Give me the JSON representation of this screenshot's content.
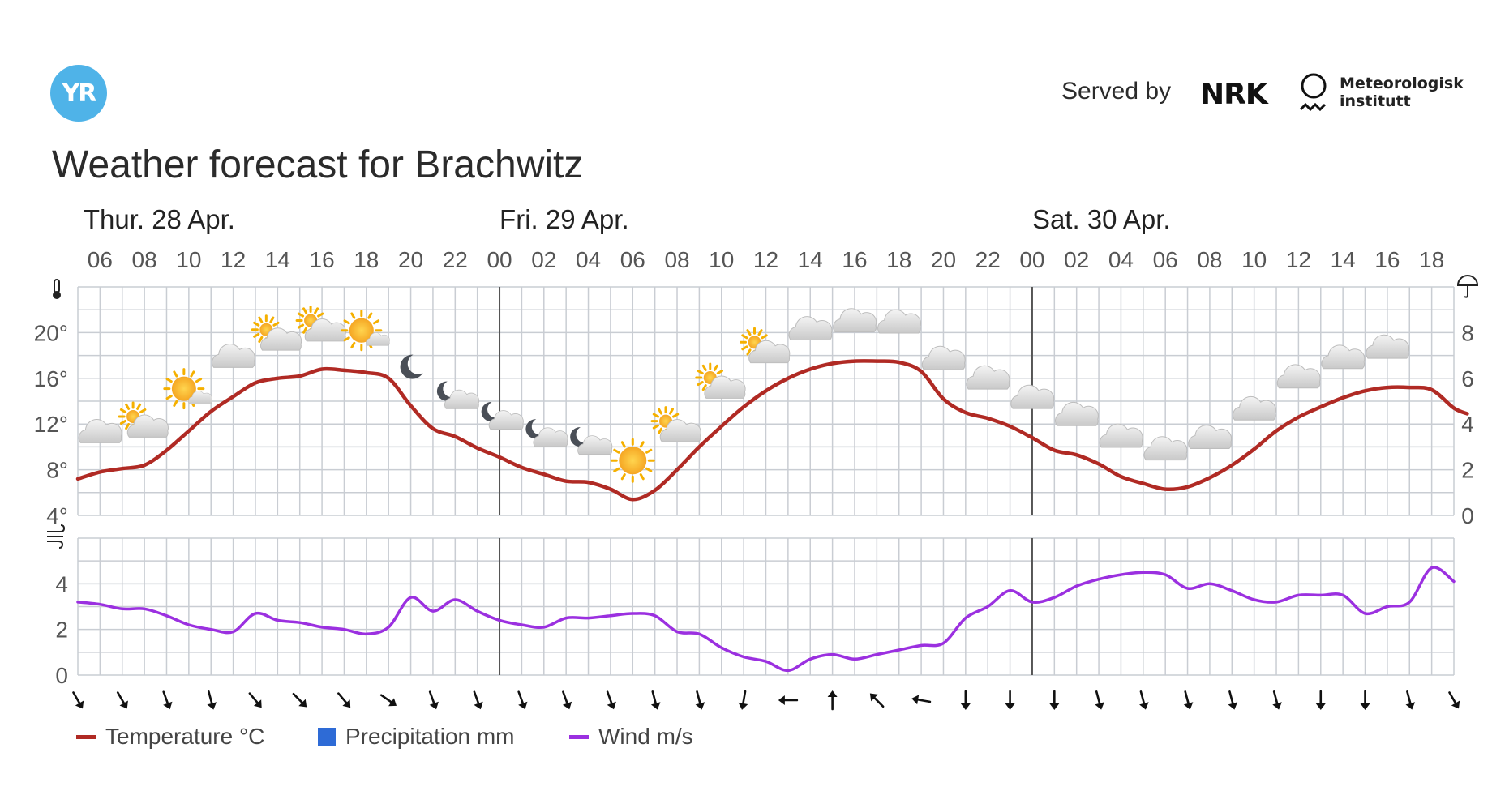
{
  "header": {
    "logo_text": "YR",
    "title": "Weather forecast for Brachwitz",
    "served_by": "Served by",
    "nrk_logo": "NRK",
    "met_line1": "Meteorologisk",
    "met_line2": "institutt"
  },
  "colors": {
    "temperature": "#b02a24",
    "precipitation": "#2e6bd6",
    "wind": "#9b30e0",
    "grid": "#c9cdd3",
    "day_divider": "#555555"
  },
  "legend": [
    {
      "label": "Temperature °C",
      "color": "#b02a24",
      "kind": "line"
    },
    {
      "label": "Precipitation mm",
      "color": "#2e6bd6",
      "kind": "box"
    },
    {
      "label": "Wind m/s",
      "color": "#9b30e0",
      "kind": "line"
    }
  ],
  "chart_data": {
    "type": "line",
    "days": [
      {
        "label": "Thur. 28 Apr.",
        "start_hour": 5.25
      },
      {
        "label": "Fri. 29 Apr.",
        "start_hour": 24
      },
      {
        "label": "Sat. 30 Apr.",
        "start_hour": 48
      }
    ],
    "x_hour_range": [
      5,
      67
    ],
    "hour_ticks": [
      {
        "h": 6,
        "label": "06"
      },
      {
        "h": 8,
        "label": "08"
      },
      {
        "h": 10,
        "label": "10"
      },
      {
        "h": 12,
        "label": "12"
      },
      {
        "h": 14,
        "label": "14"
      },
      {
        "h": 16,
        "label": "16"
      },
      {
        "h": 18,
        "label": "18"
      },
      {
        "h": 20,
        "label": "20"
      },
      {
        "h": 22,
        "label": "22"
      },
      {
        "h": 24,
        "label": "00"
      },
      {
        "h": 26,
        "label": "02"
      },
      {
        "h": 28,
        "label": "04"
      },
      {
        "h": 30,
        "label": "06"
      },
      {
        "h": 32,
        "label": "08"
      },
      {
        "h": 34,
        "label": "10"
      },
      {
        "h": 36,
        "label": "12"
      },
      {
        "h": 38,
        "label": "14"
      },
      {
        "h": 40,
        "label": "16"
      },
      {
        "h": 42,
        "label": "18"
      },
      {
        "h": 44,
        "label": "20"
      },
      {
        "h": 46,
        "label": "22"
      },
      {
        "h": 48,
        "label": "00"
      },
      {
        "h": 50,
        "label": "02"
      },
      {
        "h": 52,
        "label": "04"
      },
      {
        "h": 54,
        "label": "06"
      },
      {
        "h": 56,
        "label": "08"
      },
      {
        "h": 58,
        "label": "10"
      },
      {
        "h": 60,
        "label": "12"
      },
      {
        "h": 62,
        "label": "14"
      },
      {
        "h": 64,
        "label": "16"
      },
      {
        "h": 66,
        "label": "18"
      }
    ],
    "temperature": {
      "name": "Temperature °C",
      "ylim": [
        4,
        24
      ],
      "tick_labels": [
        {
          "v": 20,
          "label": "20°"
        },
        {
          "v": 16,
          "label": "16°"
        },
        {
          "v": 12,
          "label": "12°"
        },
        {
          "v": 8,
          "label": "8°"
        },
        {
          "v": 4,
          "label": "4°"
        }
      ],
      "values": [
        [
          5,
          7.2
        ],
        [
          6,
          7.8
        ],
        [
          7,
          8.1
        ],
        [
          8,
          8.4
        ],
        [
          9,
          9.7
        ],
        [
          10,
          11.4
        ],
        [
          11,
          13.1
        ],
        [
          12,
          14.4
        ],
        [
          13,
          15.6
        ],
        [
          14,
          16.0
        ],
        [
          15,
          16.2
        ],
        [
          16,
          16.8
        ],
        [
          17,
          16.7
        ],
        [
          18,
          16.5
        ],
        [
          19,
          16.0
        ],
        [
          20,
          13.6
        ],
        [
          21,
          11.6
        ],
        [
          22,
          10.9
        ],
        [
          23,
          9.9
        ],
        [
          24,
          9.1
        ],
        [
          25,
          8.2
        ],
        [
          26,
          7.6
        ],
        [
          27,
          7.0
        ],
        [
          28,
          6.9
        ],
        [
          29,
          6.3
        ],
        [
          30,
          5.4
        ],
        [
          31,
          6.2
        ],
        [
          32,
          8.0
        ],
        [
          33,
          10.0
        ],
        [
          34,
          11.8
        ],
        [
          35,
          13.5
        ],
        [
          36,
          14.9
        ],
        [
          37,
          16.0
        ],
        [
          38,
          16.8
        ],
        [
          39,
          17.3
        ],
        [
          40,
          17.5
        ],
        [
          41,
          17.5
        ],
        [
          42,
          17.4
        ],
        [
          43,
          16.6
        ],
        [
          44,
          14.2
        ],
        [
          45,
          13.0
        ],
        [
          46,
          12.5
        ],
        [
          47,
          11.8
        ],
        [
          48,
          10.8
        ],
        [
          49,
          9.7
        ],
        [
          50,
          9.3
        ],
        [
          51,
          8.5
        ],
        [
          52,
          7.4
        ],
        [
          53,
          6.8
        ],
        [
          54,
          6.3
        ],
        [
          55,
          6.5
        ],
        [
          56,
          7.3
        ],
        [
          57,
          8.4
        ],
        [
          58,
          9.8
        ],
        [
          59,
          11.4
        ],
        [
          60,
          12.6
        ],
        [
          61,
          13.5
        ],
        [
          62,
          14.3
        ],
        [
          63,
          14.9
        ],
        [
          64,
          15.2
        ],
        [
          65,
          15.2
        ],
        [
          66,
          15.0
        ],
        [
          67,
          13.4
        ],
        [
          67.6,
          12.9
        ]
      ]
    },
    "precipitation": {
      "name": "Precipitation mm",
      "ylim": [
        0,
        10
      ],
      "tick_labels": [
        {
          "v": 8,
          "label": "8"
        },
        {
          "v": 6,
          "label": "6"
        },
        {
          "v": 4,
          "label": "4"
        },
        {
          "v": 2,
          "label": "2"
        },
        {
          "v": 0,
          "label": "0"
        }
      ],
      "values": []
    },
    "wind": {
      "name": "Wind m/s",
      "ylim": [
        0,
        6
      ],
      "tick_labels": [
        {
          "v": 4,
          "label": "4"
        },
        {
          "v": 2,
          "label": "2"
        },
        {
          "v": 0,
          "label": "0"
        }
      ],
      "values": [
        [
          5,
          3.2
        ],
        [
          6,
          3.1
        ],
        [
          7,
          2.9
        ],
        [
          8,
          2.9
        ],
        [
          9,
          2.6
        ],
        [
          10,
          2.2
        ],
        [
          11,
          2.0
        ],
        [
          12,
          1.9
        ],
        [
          13,
          2.7
        ],
        [
          14,
          2.4
        ],
        [
          15,
          2.3
        ],
        [
          16,
          2.1
        ],
        [
          17,
          2.0
        ],
        [
          18,
          1.8
        ],
        [
          19,
          2.1
        ],
        [
          20,
          3.4
        ],
        [
          21,
          2.8
        ],
        [
          22,
          3.3
        ],
        [
          23,
          2.8
        ],
        [
          24,
          2.4
        ],
        [
          25,
          2.2
        ],
        [
          26,
          2.1
        ],
        [
          27,
          2.5
        ],
        [
          28,
          2.5
        ],
        [
          29,
          2.6
        ],
        [
          30,
          2.7
        ],
        [
          31,
          2.6
        ],
        [
          32,
          1.9
        ],
        [
          33,
          1.8
        ],
        [
          34,
          1.2
        ],
        [
          35,
          0.8
        ],
        [
          36,
          0.6
        ],
        [
          37,
          0.2
        ],
        [
          38,
          0.7
        ],
        [
          39,
          0.9
        ],
        [
          40,
          0.7
        ],
        [
          41,
          0.9
        ],
        [
          42,
          1.1
        ],
        [
          43,
          1.3
        ],
        [
          44,
          1.4
        ],
        [
          45,
          2.5
        ],
        [
          46,
          3.0
        ],
        [
          47,
          3.7
        ],
        [
          48,
          3.2
        ],
        [
          49,
          3.4
        ],
        [
          50,
          3.9
        ],
        [
          51,
          4.2
        ],
        [
          52,
          4.4
        ],
        [
          53,
          4.5
        ],
        [
          54,
          4.4
        ],
        [
          55,
          3.8
        ],
        [
          56,
          4.0
        ],
        [
          57,
          3.7
        ],
        [
          58,
          3.3
        ],
        [
          59,
          3.2
        ],
        [
          60,
          3.5
        ],
        [
          61,
          3.5
        ],
        [
          62,
          3.5
        ],
        [
          63,
          2.7
        ],
        [
          64,
          3.0
        ],
        [
          65,
          3.2
        ],
        [
          66,
          4.7
        ],
        [
          67,
          4.1
        ]
      ]
    },
    "wind_direction_arrows": [
      {
        "h": 5,
        "angle": 150
      },
      {
        "h": 7,
        "angle": 150
      },
      {
        "h": 9,
        "angle": 160
      },
      {
        "h": 11,
        "angle": 165
      },
      {
        "h": 13,
        "angle": 140
      },
      {
        "h": 15,
        "angle": 135
      },
      {
        "h": 17,
        "angle": 140
      },
      {
        "h": 19,
        "angle": 125
      },
      {
        "h": 21,
        "angle": 160
      },
      {
        "h": 23,
        "angle": 160
      },
      {
        "h": 25,
        "angle": 160
      },
      {
        "h": 27,
        "angle": 160
      },
      {
        "h": 29,
        "angle": 160
      },
      {
        "h": 31,
        "angle": 165
      },
      {
        "h": 33,
        "angle": 165
      },
      {
        "h": 35,
        "angle": 190
      },
      {
        "h": 37,
        "angle": 270
      },
      {
        "h": 39,
        "angle": 0
      },
      {
        "h": 41,
        "angle": 315
      },
      {
        "h": 43,
        "angle": 280
      },
      {
        "h": 45,
        "angle": 180
      },
      {
        "h": 47,
        "angle": 180
      },
      {
        "h": 49,
        "angle": 180
      },
      {
        "h": 51,
        "angle": 165
      },
      {
        "h": 53,
        "angle": 165
      },
      {
        "h": 55,
        "angle": 165
      },
      {
        "h": 57,
        "angle": 165
      },
      {
        "h": 59,
        "angle": 165
      },
      {
        "h": 61,
        "angle": 180
      },
      {
        "h": 63,
        "angle": 180
      },
      {
        "h": 65,
        "angle": 165
      },
      {
        "h": 67,
        "angle": 150
      }
    ],
    "weather_symbols": [
      {
        "h": 6,
        "symbol": "cloudy"
      },
      {
        "h": 8,
        "symbol": "partly-cloudy-day"
      },
      {
        "h": 10,
        "symbol": "fair-day"
      },
      {
        "h": 12,
        "symbol": "cloudy"
      },
      {
        "h": 14,
        "symbol": "partly-cloudy-day"
      },
      {
        "h": 16,
        "symbol": "partly-cloudy-day"
      },
      {
        "h": 18,
        "symbol": "fair-day"
      },
      {
        "h": 20,
        "symbol": "clear-night"
      },
      {
        "h": 22,
        "symbol": "partly-cloudy-night"
      },
      {
        "h": 24,
        "symbol": "partly-cloudy-night"
      },
      {
        "h": 26,
        "symbol": "partly-cloudy-night"
      },
      {
        "h": 28,
        "symbol": "partly-cloudy-night"
      },
      {
        "h": 30,
        "symbol": "clear-day"
      },
      {
        "h": 32,
        "symbol": "partly-cloudy-day"
      },
      {
        "h": 34,
        "symbol": "partly-cloudy-day"
      },
      {
        "h": 36,
        "symbol": "partly-cloudy-day"
      },
      {
        "h": 38,
        "symbol": "cloudy"
      },
      {
        "h": 40,
        "symbol": "cloudy"
      },
      {
        "h": 42,
        "symbol": "cloudy"
      },
      {
        "h": 44,
        "symbol": "cloudy"
      },
      {
        "h": 46,
        "symbol": "cloudy"
      },
      {
        "h": 48,
        "symbol": "cloudy"
      },
      {
        "h": 50,
        "symbol": "cloudy"
      },
      {
        "h": 52,
        "symbol": "cloudy"
      },
      {
        "h": 54,
        "symbol": "cloudy"
      },
      {
        "h": 56,
        "symbol": "cloudy"
      },
      {
        "h": 58,
        "symbol": "cloudy"
      },
      {
        "h": 60,
        "symbol": "cloudy"
      },
      {
        "h": 62,
        "symbol": "cloudy"
      },
      {
        "h": 64,
        "symbol": "cloudy"
      }
    ],
    "grid": true,
    "legend_position": "bottom-left"
  }
}
